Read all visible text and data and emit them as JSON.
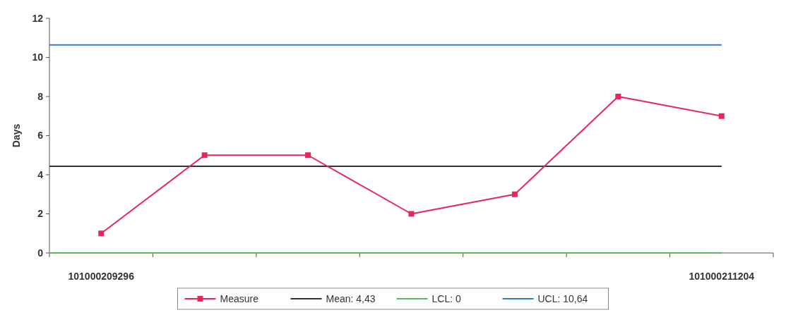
{
  "chart_data": {
    "type": "line",
    "ylabel": "Days",
    "categories": [
      "101000209296",
      null,
      null,
      null,
      null,
      null,
      "101000211204"
    ],
    "series": [
      {
        "name": "Measure",
        "color": "#e8265e",
        "values": [
          1,
          5,
          5,
          2,
          3,
          8,
          7
        ]
      }
    ],
    "ref_lines": [
      {
        "axis": "y",
        "value": 4.43,
        "label": "Mean: 4,43",
        "color": "#333333"
      },
      {
        "axis": "y",
        "value": 0,
        "label": "LCL: 0",
        "color": "#5cb85c"
      },
      {
        "axis": "y",
        "value": 10.64,
        "label": "UCL: 10,64",
        "color": "#3a7cc4"
      }
    ],
    "ylim": [
      0,
      12
    ],
    "yticks": [
      0,
      2,
      4,
      6,
      8,
      10,
      12
    ],
    "marker": "square",
    "legend": "bottom",
    "grid": false
  }
}
